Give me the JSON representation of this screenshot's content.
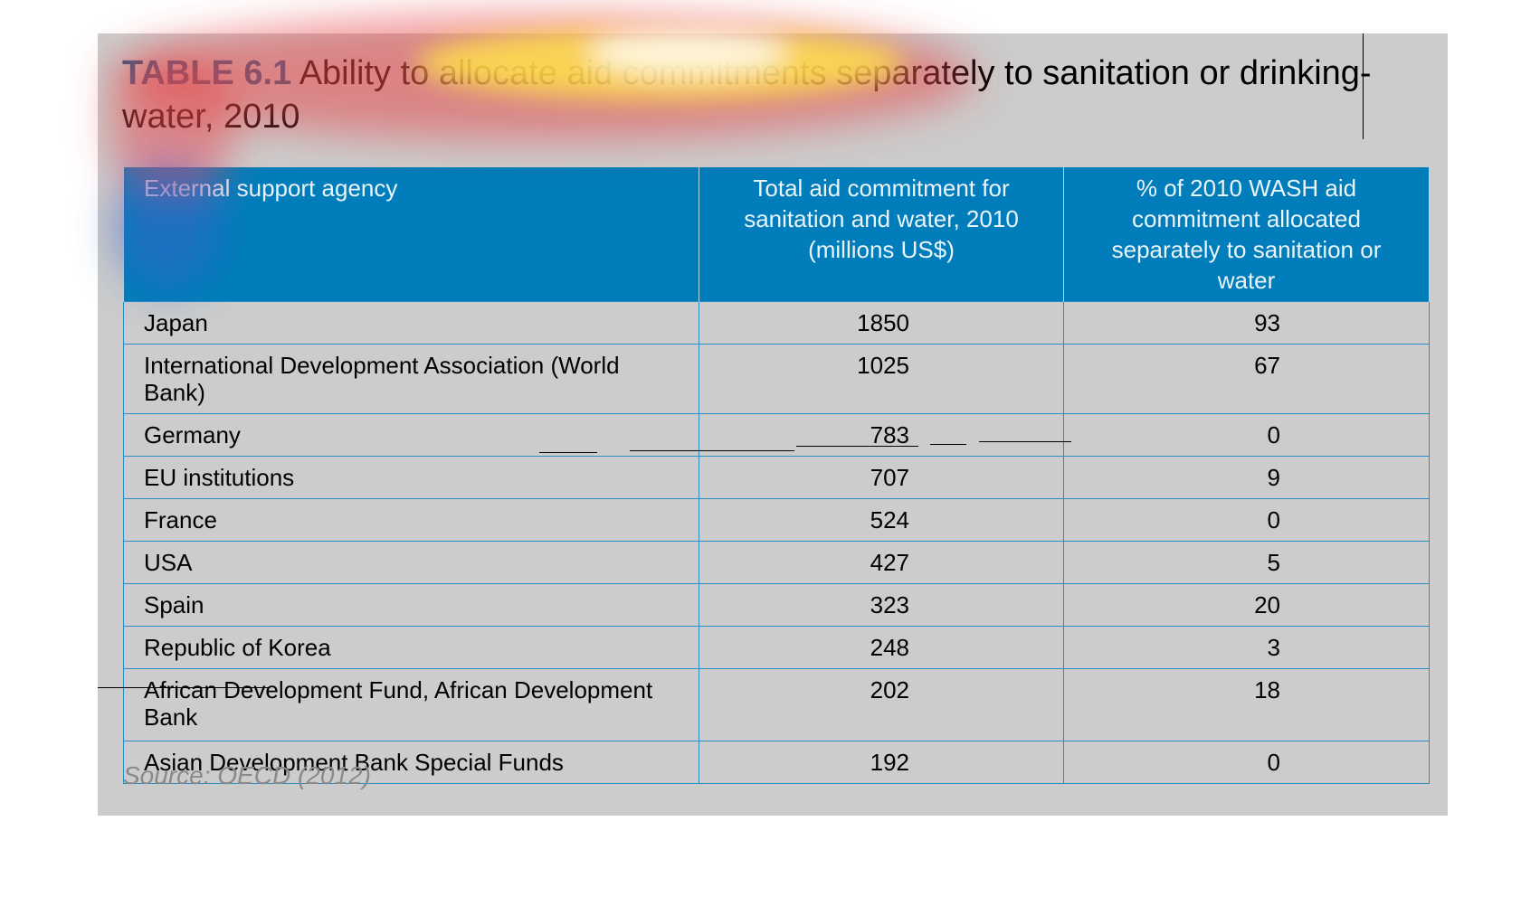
{
  "title": {
    "tag": "TABLE 6.1",
    "text": "Ability to allocate aid commitments separately to sanitation or drinking-water, 2010"
  },
  "table": {
    "headers": [
      "External support agency",
      "Total aid commitment for sanitation and water, 2010 (millions US$)",
      "% of 2010 WASH aid commitment allocated separately to sanitation or water"
    ],
    "rows": [
      {
        "agency": "Japan",
        "total": "1850",
        "percent": "93"
      },
      {
        "agency": "International Development Association (World Bank)",
        "total": "1025",
        "percent": "67"
      },
      {
        "agency": "Germany",
        "total": "783",
        "percent": "0"
      },
      {
        "agency": "EU institutions",
        "total": "707",
        "percent": "9"
      },
      {
        "agency": "France",
        "total": "524",
        "percent": "0"
      },
      {
        "agency": "USA",
        "total": "427",
        "percent": "5"
      },
      {
        "agency": "Spain",
        "total": "323",
        "percent": "20"
      },
      {
        "agency": "Republic of Korea",
        "total": "248",
        "percent": "3"
      },
      {
        "agency": "African Development Fund, African Development Bank",
        "total": "202",
        "percent": "18"
      },
      {
        "agency": "Asian Development Bank Special Funds",
        "total": "192",
        "percent": "0"
      }
    ]
  },
  "source": "Source: OECD (2012)",
  "colors": {
    "panel": "#cccccc",
    "header": "#007dba",
    "grid": "#2a8cc4",
    "title_tag": "#1a5a8a"
  }
}
